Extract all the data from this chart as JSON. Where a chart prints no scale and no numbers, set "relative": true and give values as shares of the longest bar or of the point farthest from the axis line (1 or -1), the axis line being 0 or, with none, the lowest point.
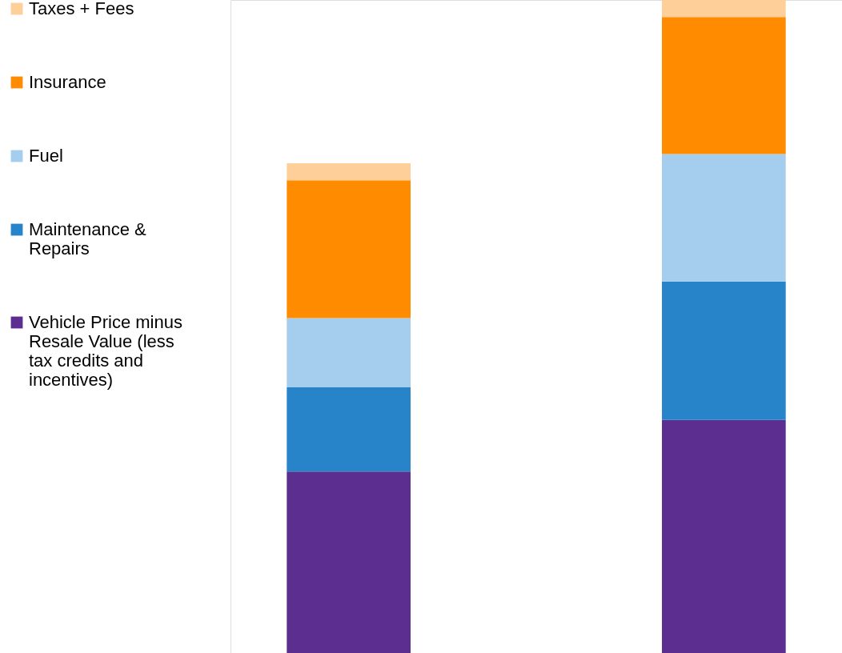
{
  "chart_data": {
    "type": "bar",
    "stacked": true,
    "relative": true,
    "legend": "left",
    "tick_labels": false,
    "categories": [
      null,
      null
    ],
    "series": [
      {
        "name": "Vehicle Price minus Resale Value (less tax credits and incentives)",
        "color": "#5b2e8f",
        "values": [
          0.278,
          0.357
        ]
      },
      {
        "name": "Maintenance & Repairs",
        "color": "#2884c8",
        "values": [
          0.129,
          0.212
        ]
      },
      {
        "name": "Fuel",
        "color": "#a5cdee",
        "values": [
          0.106,
          0.195
        ]
      },
      {
        "name": "Insurance",
        "color": "#ff8c00",
        "values": [
          0.211,
          0.21
        ]
      },
      {
        "name": "Taxes + Fees",
        "color": "#ffcf99",
        "values": [
          0.026,
          0.026
        ]
      }
    ]
  }
}
